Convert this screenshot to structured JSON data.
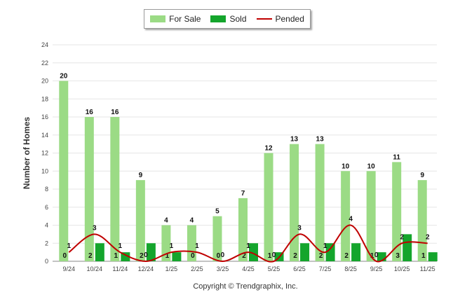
{
  "colors": {
    "for_sale": "#9bdb85",
    "sold": "#14a52c",
    "pended": "#c00000",
    "grid": "#e6e6e6",
    "axis": "#888888"
  },
  "legend": [
    {
      "label": "For Sale",
      "color": "#9bdb85",
      "kind": "bar"
    },
    {
      "label": "Sold",
      "color": "#14a52c",
      "kind": "bar"
    },
    {
      "label": "Pended",
      "color": "#c00000",
      "kind": "line"
    }
  ],
  "chart_data": {
    "type": "bar",
    "title": "",
    "xlabel": "",
    "ylabel": "Number of Homes",
    "ylim": [
      0,
      24
    ],
    "yticks": [
      0,
      2,
      4,
      6,
      8,
      10,
      12,
      14,
      16,
      18,
      20,
      22,
      24
    ],
    "grid": true,
    "legend_position": "top-center",
    "categories": [
      "9/24",
      "10/24",
      "11/24",
      "12/24",
      "1/25",
      "2/25",
      "3/25",
      "4/25",
      "5/25",
      "6/25",
      "7/25",
      "8/25",
      "9/25",
      "10/25",
      "11/25"
    ],
    "series": [
      {
        "name": "For Sale",
        "kind": "bar",
        "values": [
          20,
          16,
          16,
          9,
          4,
          4,
          5,
          7,
          12,
          13,
          13,
          10,
          10,
          11,
          9
        ]
      },
      {
        "name": "Sold",
        "kind": "bar",
        "values": [
          0,
          2,
          1,
          2,
          1,
          0,
          0,
          2,
          1,
          2,
          2,
          2,
          1,
          3,
          1
        ]
      },
      {
        "name": "Pended",
        "kind": "line",
        "values": [
          1,
          3,
          1,
          0,
          1,
          1,
          0,
          1,
          0,
          3,
          1,
          4,
          0,
          2,
          2
        ]
      }
    ]
  },
  "footer": {
    "copyright": "Copyright © Trendgraphix, Inc."
  }
}
